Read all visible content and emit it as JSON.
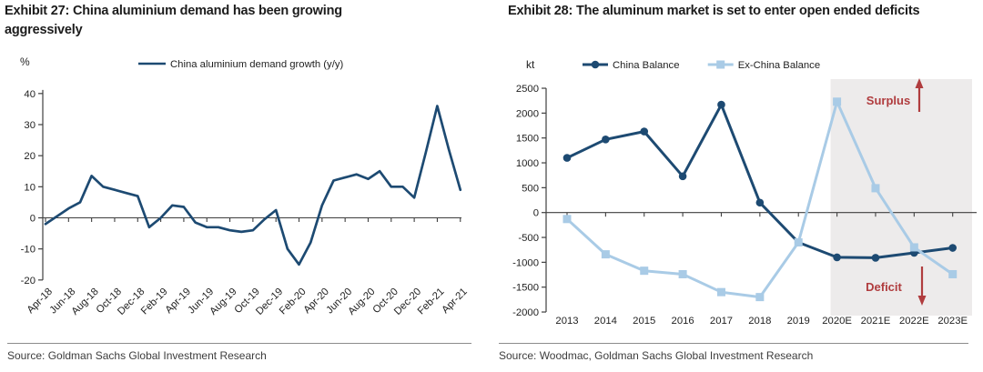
{
  "panels": [
    {
      "title": "Exhibit 27: China aluminium demand has been growing aggressively",
      "source": "Source: Goldman Sachs Global Investment Research"
    },
    {
      "title": "Exhibit 28: The aluminum market is set to enter open ended deficits",
      "source": "Source: Woodmac, Goldman Sachs Global Investment Research"
    }
  ],
  "chart_data": [
    {
      "type": "line",
      "title": "Exhibit 27: China aluminium demand has been growing aggressively",
      "ylabel": "%",
      "legend_position": "top",
      "grid": false,
      "ylim": [
        -20,
        40
      ],
      "yticks": [
        40,
        30,
        20,
        10,
        0,
        -10,
        -20
      ],
      "x": [
        "Apr-18",
        "May-18",
        "Jun-18",
        "Jul-18",
        "Aug-18",
        "Sep-18",
        "Oct-18",
        "Nov-18",
        "Dec-18",
        "Jan-19",
        "Feb-19",
        "Mar-19",
        "Apr-19",
        "May-19",
        "Jun-19",
        "Jul-19",
        "Aug-19",
        "Sep-19",
        "Oct-19",
        "Nov-19",
        "Dec-19",
        "Jan-20",
        "Feb-20",
        "Mar-20",
        "Apr-20",
        "May-20",
        "Jun-20",
        "Jul-20",
        "Aug-20",
        "Sep-20",
        "Oct-20",
        "Nov-20",
        "Dec-20",
        "Jan-21",
        "Feb-21",
        "Mar-21",
        "Apr-21"
      ],
      "x_tick_every": 2,
      "series": [
        {
          "name": "China aluminium demand growth (y/y)",
          "color": "#1d4a72",
          "values": [
            -2,
            0.5,
            3,
            5,
            13.5,
            10,
            9,
            8,
            7,
            -3,
            0,
            4,
            3.5,
            -1.5,
            -3,
            -3,
            -4,
            -4.5,
            -4,
            -0.5,
            2.5,
            -10,
            -15,
            -8,
            4,
            12,
            13,
            14,
            12.5,
            15,
            10,
            10,
            6.5,
            21,
            36,
            22,
            9
          ]
        }
      ]
    },
    {
      "type": "line",
      "title": "Exhibit 28: The aluminum market is set to enter open ended deficits",
      "ylabel": "kt",
      "legend_position": "top",
      "grid": false,
      "ylim": [
        -2000,
        2500
      ],
      "yticks": [
        2500,
        2000,
        1500,
        1000,
        500,
        0,
        -500,
        -1000,
        -1500,
        -2000
      ],
      "x": [
        "2013",
        "2014",
        "2015",
        "2016",
        "2017",
        "2018",
        "2019",
        "2020E",
        "2021E",
        "2022E",
        "2023E"
      ],
      "series": [
        {
          "name": "China Balance",
          "color": "#1d4a72",
          "marker": "circle",
          "values": [
            1100,
            1470,
            1630,
            730,
            2170,
            200,
            -600,
            -900,
            -910,
            -810,
            -710
          ]
        },
        {
          "name": "Ex-China Balance",
          "color": "#a9cbe6",
          "marker": "square",
          "values": [
            -130,
            -840,
            -1170,
            -1240,
            -1600,
            -1700,
            -600,
            2230,
            490,
            -700,
            -1240
          ]
        }
      ],
      "forecast_band": {
        "from": "2020E",
        "to": "2023E",
        "fill": "#edebeb"
      },
      "annotations": [
        {
          "text": "Surplus",
          "color": "#b03c3e",
          "arrow": "up"
        },
        {
          "text": "Deficit",
          "color": "#b03c3e",
          "arrow": "down"
        }
      ]
    }
  ]
}
